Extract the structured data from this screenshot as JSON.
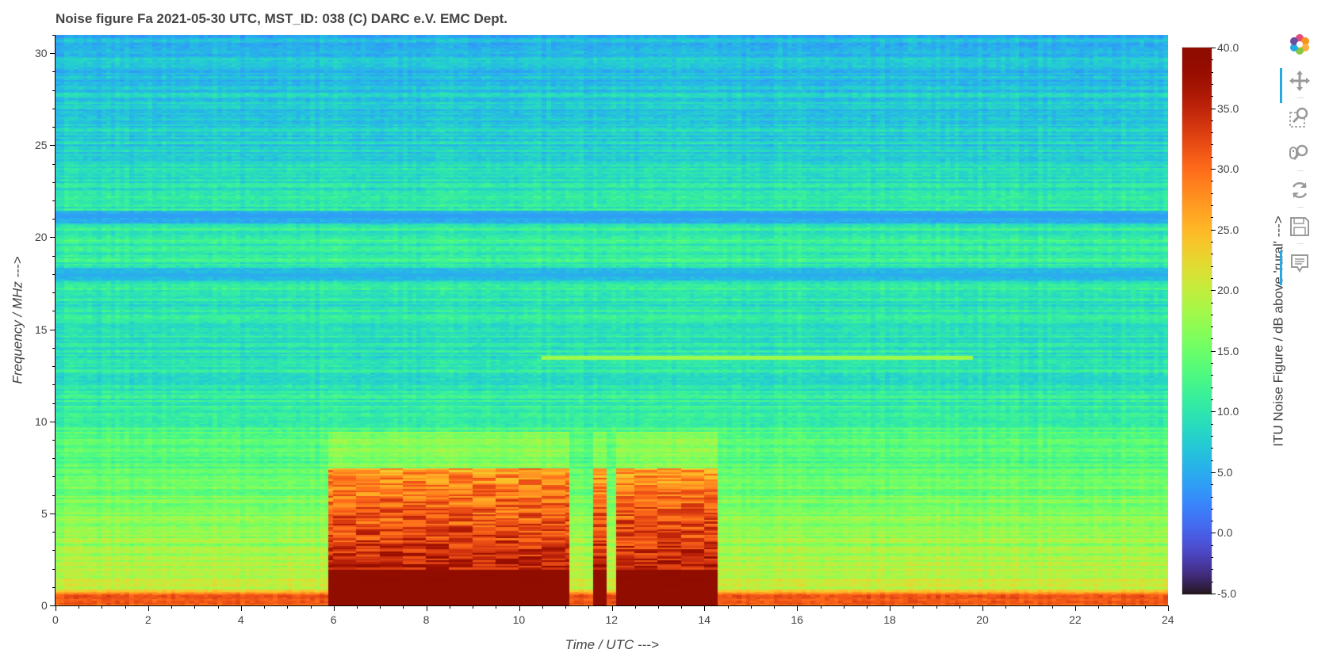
{
  "title": "Noise figure Fa  2021-05-30  UTC,  MST_ID:  038   (C) DARC e.V. EMC Dept.",
  "chart_data": {
    "type": "heatmap",
    "title": "Noise figure Fa  2021-05-30  UTC,  MST_ID:  038   (C) DARC e.V. EMC Dept.",
    "xlabel": "Time / UTC --->",
    "ylabel": "Frequency / MHz --->",
    "colorbar_label": "ITU Noise Figure / dB above 'rural' --->",
    "xlim": [
      0,
      24
    ],
    "ylim": [
      0,
      31
    ],
    "clim": [
      -5,
      40
    ],
    "x_ticks": [
      "0",
      "2",
      "4",
      "6",
      "8",
      "10",
      "12",
      "14",
      "16",
      "18",
      "20",
      "22",
      "24"
    ],
    "y_ticks": [
      "0",
      "5",
      "10",
      "15",
      "20",
      "25",
      "30"
    ],
    "colorbar_ticks": [
      "-5.0",
      "0.0",
      "5.0",
      "10.0",
      "15.0",
      "20.0",
      "25.0",
      "30.0",
      "35.0",
      "40.0"
    ],
    "colormap": "turbo",
    "background_level_db": {
      "freq_mhz": [
        0,
        0.5,
        1,
        2,
        3,
        4,
        5,
        7,
        8,
        9,
        10,
        12,
        15,
        20,
        25,
        28,
        31
      ],
      "db": [
        30,
        33,
        20,
        19,
        18,
        17,
        16,
        14,
        13,
        13.5,
        12,
        10,
        9.5,
        11,
        8,
        7,
        6
      ]
    },
    "daytime_enhancement": {
      "blocks_utc": [
        [
          5.9,
          11.05
        ],
        [
          11.6,
          11.9
        ],
        [
          12.1,
          14.3
        ]
      ],
      "freq_range_mhz": [
        0,
        7.5
      ],
      "peak_db": 40
    },
    "notable_features": [
      {
        "label": "narrow line",
        "freq_mhz": 13.5,
        "time_utc": [
          10.5,
          19.8
        ],
        "db": 18
      },
      {
        "label": "band",
        "freq_mhz": 21.2,
        "time_utc": [
          0,
          24
        ],
        "db": 4
      },
      {
        "label": "band",
        "freq_mhz": 18.0,
        "time_utc": [
          0,
          24
        ],
        "db": 5
      }
    ]
  },
  "toolbar": {
    "items": [
      "bokeh-logo-icon",
      "pan-icon",
      "box-zoom-icon",
      "wheel-zoom-icon",
      "reset-icon",
      "save-icon",
      "hover-icon"
    ],
    "accent": "#26aae1"
  }
}
